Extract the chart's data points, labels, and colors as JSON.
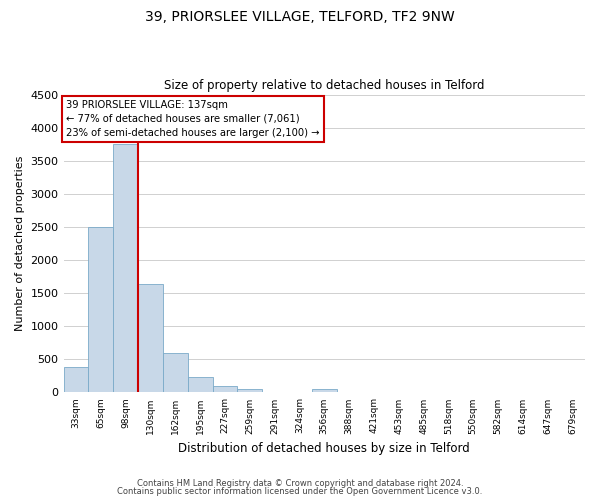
{
  "title": "39, PRIORSLEE VILLAGE, TELFORD, TF2 9NW",
  "subtitle": "Size of property relative to detached houses in Telford",
  "xlabel": "Distribution of detached houses by size in Telford",
  "ylabel": "Number of detached properties",
  "bar_color": "#c8d8e8",
  "bar_edge_color": "#7aaac8",
  "bin_labels": [
    "33sqm",
    "65sqm",
    "98sqm",
    "130sqm",
    "162sqm",
    "195sqm",
    "227sqm",
    "259sqm",
    "291sqm",
    "324sqm",
    "356sqm",
    "388sqm",
    "421sqm",
    "453sqm",
    "485sqm",
    "518sqm",
    "550sqm",
    "582sqm",
    "614sqm",
    "647sqm",
    "679sqm"
  ],
  "bar_values": [
    380,
    2500,
    3750,
    1640,
    600,
    240,
    90,
    50,
    0,
    0,
    50,
    0,
    0,
    0,
    0,
    0,
    0,
    0,
    0,
    0,
    0
  ],
  "ylim": [
    0,
    4500
  ],
  "yticks": [
    0,
    500,
    1000,
    1500,
    2000,
    2500,
    3000,
    3500,
    4000,
    4500
  ],
  "vline_color": "#cc0000",
  "annotation_title": "39 PRIORSLEE VILLAGE: 137sqm",
  "annotation_line1": "← 77% of detached houses are smaller (7,061)",
  "annotation_line2": "23% of semi-detached houses are larger (2,100) →",
  "annotation_box_color": "#ffffff",
  "annotation_box_edge": "#cc0000",
  "footer1": "Contains HM Land Registry data © Crown copyright and database right 2024.",
  "footer2": "Contains public sector information licensed under the Open Government Licence v3.0.",
  "background_color": "#ffffff",
  "grid_color": "#d0d0d0"
}
